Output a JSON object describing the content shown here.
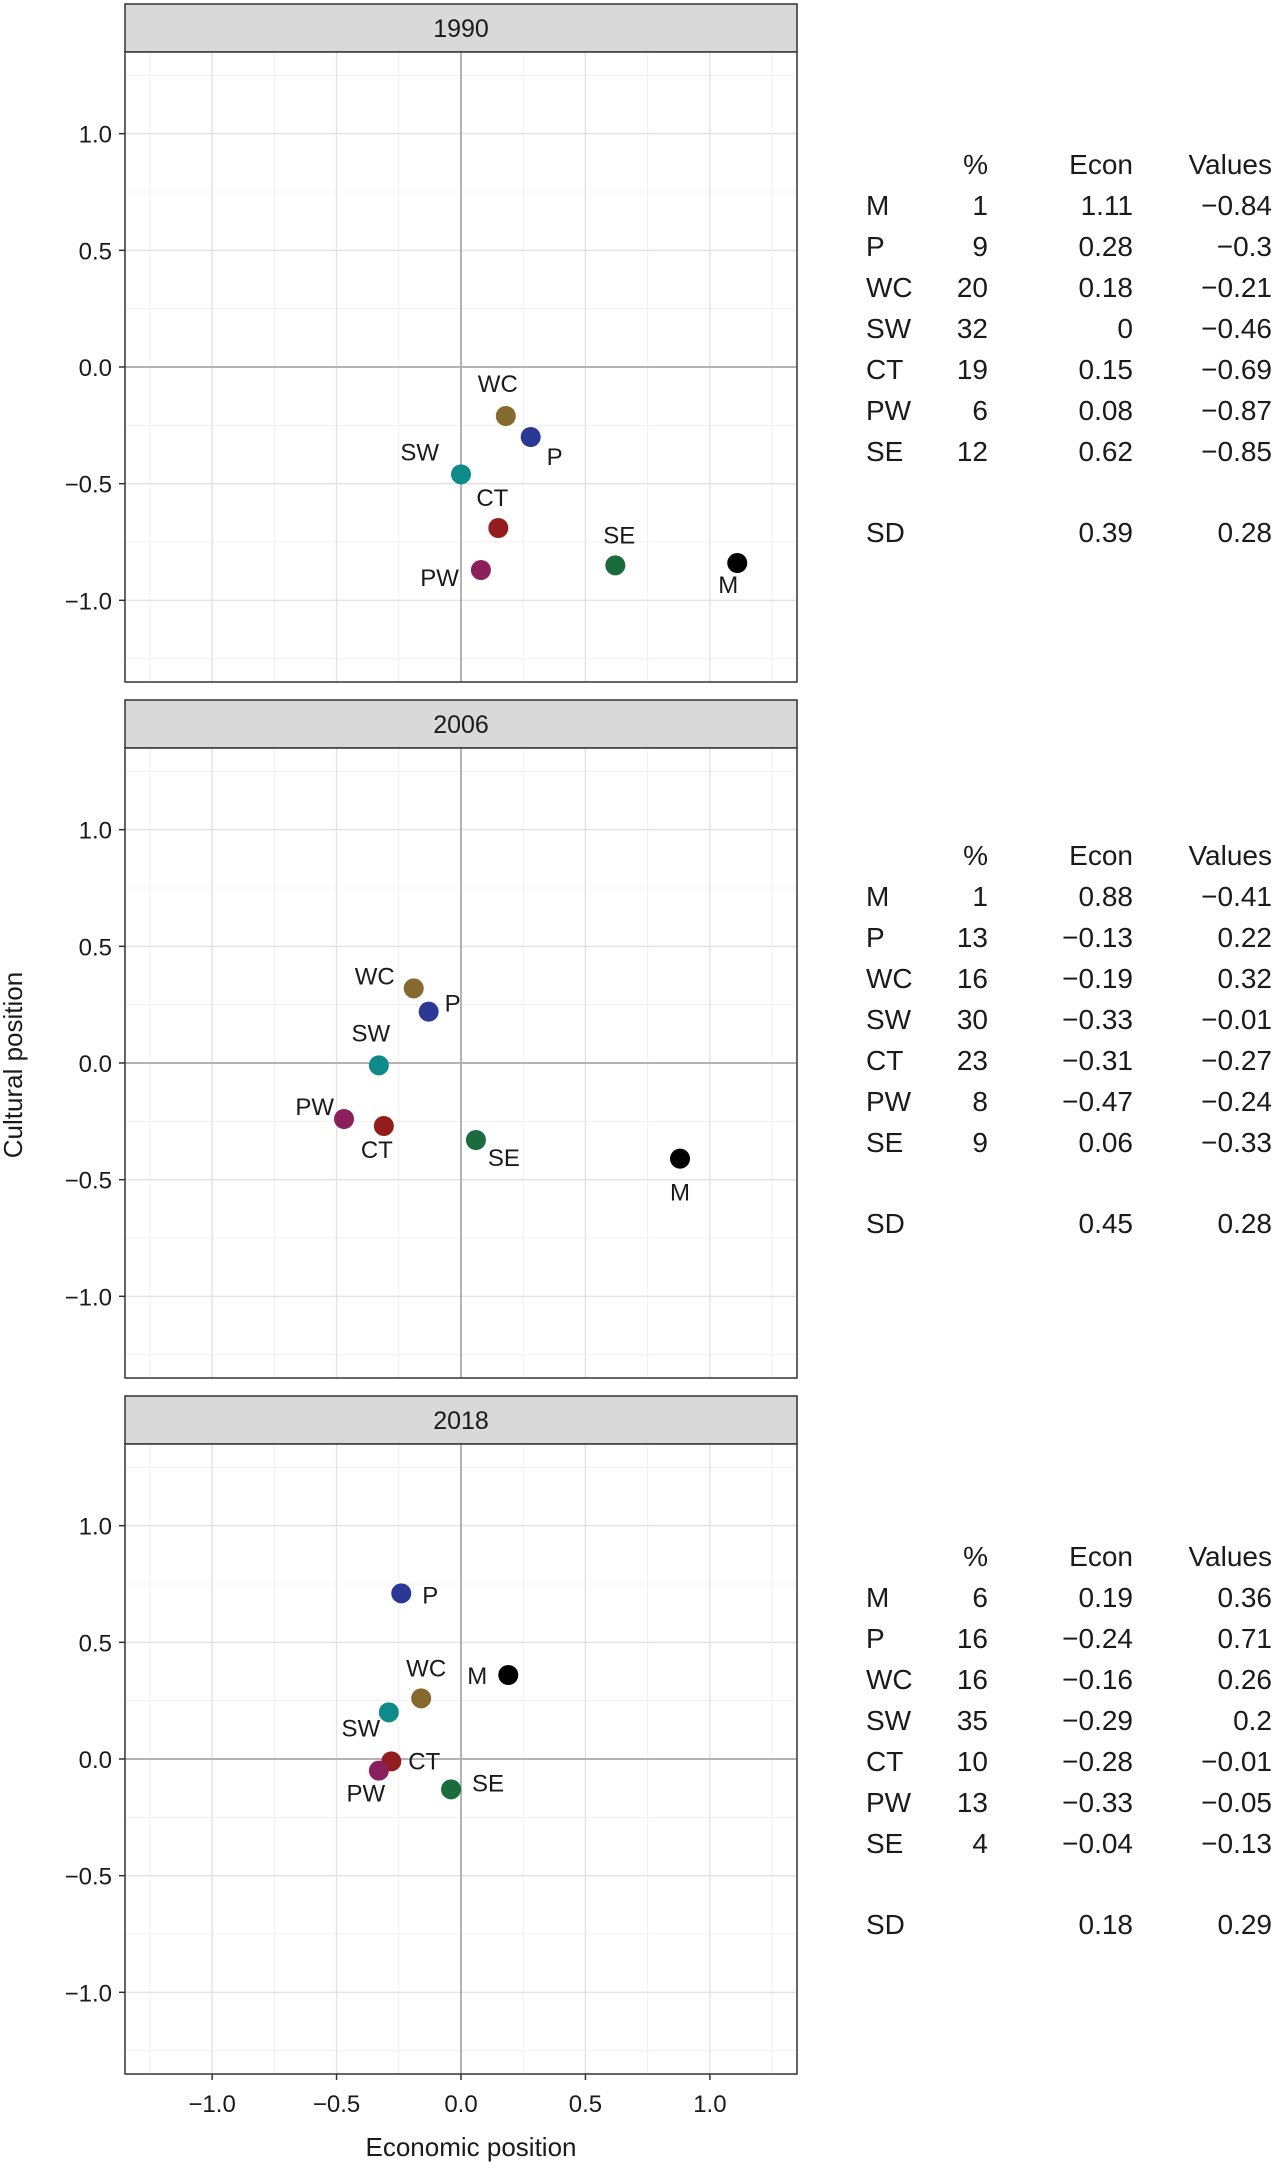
{
  "chart_data": {
    "type": "scatter",
    "xlabel": "Economic position",
    "ylabel": "Cultural position",
    "xlim": [
      -1.35,
      1.35
    ],
    "ylim": [
      -1.35,
      1.35
    ],
    "x_ticks": [
      {
        "value": -1.0,
        "label": "−1.0"
      },
      {
        "value": -0.5,
        "label": "−0.5"
      },
      {
        "value": 0.0,
        "label": "0.0"
      },
      {
        "value": 0.5,
        "label": "0.5"
      },
      {
        "value": 1.0,
        "label": "1.0"
      }
    ],
    "y_ticks": [
      {
        "value": 1.0,
        "label": "1.0"
      },
      {
        "value": 0.5,
        "label": "0.5"
      },
      {
        "value": 0.0,
        "label": "0.0"
      },
      {
        "value": -0.5,
        "label": "−0.5"
      },
      {
        "value": -1.0,
        "label": "−1.0"
      }
    ],
    "grid": true,
    "colors": {
      "M": "#000000",
      "P": "#2b3896",
      "WC": "#85692e",
      "SW": "#0e8a8a",
      "CT": "#931c1c",
      "PW": "#8a1f5c",
      "SE": "#1a6b3e"
    },
    "table_header": {
      "pct": "%",
      "econ": "Econ",
      "values": "Values"
    },
    "panels": [
      {
        "strip": "1990",
        "points": [
          {
            "label": "M",
            "pct": "1",
            "econ_label": "1.11",
            "values_label": "−0.84",
            "x": 1.11,
            "y": -0.84
          },
          {
            "label": "P",
            "pct": "9",
            "econ_label": "0.28",
            "values_label": "−0.3",
            "x": 0.28,
            "y": -0.3
          },
          {
            "label": "WC",
            "pct": "20",
            "econ_label": "0.18",
            "values_label": "−0.21",
            "x": 0.18,
            "y": -0.21
          },
          {
            "label": "SW",
            "pct": "32",
            "econ_label": "0",
            "values_label": "−0.46",
            "x": 0.0,
            "y": -0.46
          },
          {
            "label": "CT",
            "pct": "19",
            "econ_label": "0.15",
            "values_label": "−0.69",
            "x": 0.15,
            "y": -0.69
          },
          {
            "label": "PW",
            "pct": "6",
            "econ_label": "0.08",
            "values_label": "−0.87",
            "x": 0.08,
            "y": -0.87
          },
          {
            "label": "SE",
            "pct": "12",
            "econ_label": "0.62",
            "values_label": "−0.85",
            "x": 0.62,
            "y": -0.85
          }
        ],
        "sd": {
          "label": "SD",
          "econ": "0.39",
          "values": "0.28"
        }
      },
      {
        "strip": "2006",
        "points": [
          {
            "label": "M",
            "pct": "1",
            "econ_label": "0.88",
            "values_label": "−0.41",
            "x": 0.88,
            "y": -0.41
          },
          {
            "label": "P",
            "pct": "13",
            "econ_label": "−0.13",
            "values_label": "0.22",
            "x": -0.13,
            "y": 0.22
          },
          {
            "label": "WC",
            "pct": "16",
            "econ_label": "−0.19",
            "values_label": "0.32",
            "x": -0.19,
            "y": 0.32
          },
          {
            "label": "SW",
            "pct": "30",
            "econ_label": "−0.33",
            "values_label": "−0.01",
            "x": -0.33,
            "y": -0.01
          },
          {
            "label": "CT",
            "pct": "23",
            "econ_label": "−0.31",
            "values_label": "−0.27",
            "x": -0.31,
            "y": -0.27
          },
          {
            "label": "PW",
            "pct": "8",
            "econ_label": "−0.47",
            "values_label": "−0.24",
            "x": -0.47,
            "y": -0.24
          },
          {
            "label": "SE",
            "pct": "9",
            "econ_label": "0.06",
            "values_label": "−0.33",
            "x": 0.06,
            "y": -0.33
          }
        ],
        "sd": {
          "label": "SD",
          "econ": "0.45",
          "values": "0.28"
        }
      },
      {
        "strip": "2018",
        "points": [
          {
            "label": "M",
            "pct": "6",
            "econ_label": "0.19",
            "values_label": "0.36",
            "x": 0.19,
            "y": 0.36
          },
          {
            "label": "P",
            "pct": "16",
            "econ_label": "−0.24",
            "values_label": "0.71",
            "x": -0.24,
            "y": 0.71
          },
          {
            "label": "WC",
            "pct": "16",
            "econ_label": "−0.16",
            "values_label": "0.26",
            "x": -0.16,
            "y": 0.26
          },
          {
            "label": "SW",
            "pct": "35",
            "econ_label": "−0.29",
            "values_label": "0.2",
            "x": -0.29,
            "y": 0.2
          },
          {
            "label": "CT",
            "pct": "10",
            "econ_label": "−0.28",
            "values_label": "−0.01",
            "x": -0.28,
            "y": -0.01
          },
          {
            "label": "PW",
            "pct": "13",
            "econ_label": "−0.33",
            "values_label": "−0.05",
            "x": -0.33,
            "y": -0.05
          },
          {
            "label": "SE",
            "pct": "4",
            "econ_label": "−0.04",
            "values_label": "−0.13",
            "x": -0.04,
            "y": -0.13
          }
        ],
        "sd": {
          "label": "SD",
          "econ": "0.18",
          "values": "0.29"
        }
      }
    ]
  }
}
